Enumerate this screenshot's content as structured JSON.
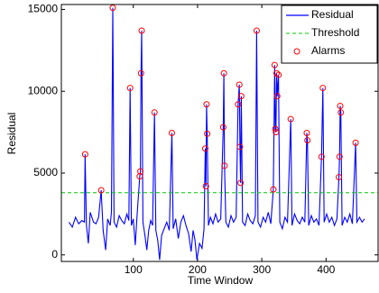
{
  "chart_data": {
    "type": "line",
    "xlabel": "Time Window",
    "ylabel": "Residual",
    "xlim": [
      -12,
      481
    ],
    "ylim": [
      -400,
      15300
    ],
    "xticks": [
      100,
      200,
      300,
      400
    ],
    "yticks": [
      0,
      5000,
      10000,
      15000
    ],
    "legend": "northeast",
    "series": [
      {
        "name": "Residual",
        "color": "#0000ff",
        "x": [
          0,
          5,
          10,
          15,
          20,
          24,
          25,
          27,
          30,
          33,
          38,
          42,
          46,
          50,
          53,
          57,
          60,
          64,
          66,
          68,
          70,
          74,
          78,
          82,
          86,
          90,
          93,
          95,
          97,
          100,
          103,
          106,
          110,
          111,
          112,
          113,
          115,
          118,
          121,
          124,
          127,
          130,
          133,
          135,
          138,
          141,
          144,
          148,
          152,
          156,
          160,
          162,
          166,
          170,
          174,
          178,
          182,
          186,
          190,
          193,
          196,
          199,
          203,
          207,
          210,
          212,
          213,
          214,
          215,
          217,
          220,
          224,
          228,
          232,
          236,
          240,
          241,
          242,
          244,
          248,
          252,
          256,
          260,
          263,
          265,
          266,
          267,
          268,
          270,
          274,
          278,
          282,
          286,
          290,
          292,
          294,
          298,
          302,
          306,
          310,
          314,
          318,
          320,
          321,
          322,
          323,
          324,
          326,
          328,
          332,
          336,
          340,
          345,
          347,
          351,
          355,
          359,
          363,
          367,
          370,
          371,
          373,
          377,
          381,
          385,
          389,
          393,
          395,
          397,
          401,
          405,
          409,
          413,
          417,
          420,
          421,
          422,
          423,
          425,
          429,
          433,
          437,
          441,
          446,
          448,
          452,
          456,
          460
        ],
        "values": [
          2000,
          1700,
          2300,
          1900,
          2100,
          2000,
          6150,
          1800,
          700,
          2600,
          2000,
          1900,
          2300,
          3950,
          1500,
          300,
          2200,
          1800,
          2600,
          15100,
          2000,
          1700,
          2400,
          2100,
          1900,
          2500,
          2100,
          10200,
          1800,
          2200,
          600,
          2500,
          4800,
          5100,
          11100,
          13700,
          2000,
          1200,
          300,
          1500,
          2100,
          1800,
          8700,
          1500,
          900,
          -300,
          1200,
          1600,
          2000,
          1500,
          7450,
          1600,
          2200,
          1000,
          2000,
          2400,
          1800,
          1300,
          200,
          1500,
          900,
          -300,
          700,
          400,
          1600,
          6500,
          4200,
          9200,
          7400,
          1800,
          2300,
          1900,
          2500,
          2000,
          2200,
          7800,
          11100,
          5450,
          2000,
          1700,
          2400,
          2000,
          2300,
          9200,
          10400,
          6600,
          4400,
          9700,
          2000,
          1800,
          2500,
          2100,
          1900,
          2400,
          13700,
          2000,
          1700,
          2300,
          2000,
          2600,
          1900,
          4000,
          11600,
          7700,
          7500,
          11100,
          9700,
          11000,
          2000,
          1600,
          2300,
          2000,
          8300,
          1800,
          2500,
          2100,
          1900,
          2300,
          2000,
          7450,
          7000,
          1800,
          2400,
          2000,
          2200,
          1800,
          6000,
          10200,
          2000,
          2500,
          2000,
          2300,
          1800,
          2200,
          4750,
          6000,
          9100,
          8700,
          1800,
          2300,
          2000,
          2500,
          1900,
          6850,
          2000,
          2300,
          2000,
          2200
        ]
      },
      {
        "name": "Threshold",
        "color": "#00cc00",
        "value": 3800
      },
      {
        "name": "Alarms",
        "color": "#ff0000",
        "x": [
          25,
          50,
          68,
          95,
          110,
          111,
          112,
          113,
          133,
          160,
          212,
          213,
          214,
          215,
          240,
          241,
          242,
          263,
          265,
          266,
          267,
          268,
          292,
          318,
          320,
          321,
          322,
          323,
          324,
          326,
          345,
          370,
          371,
          393,
          395,
          420,
          421,
          422,
          423,
          446
        ],
        "values": [
          6150,
          3950,
          15100,
          10200,
          4800,
          5100,
          11100,
          13700,
          8700,
          7450,
          6500,
          4200,
          9200,
          7400,
          7800,
          11100,
          5450,
          9200,
          10400,
          6600,
          4400,
          9700,
          13700,
          4000,
          11600,
          7700,
          7500,
          11100,
          9700,
          11000,
          8300,
          7450,
          7000,
          6000,
          10200,
          4750,
          6000,
          9100,
          8700,
          6850
        ]
      }
    ]
  }
}
